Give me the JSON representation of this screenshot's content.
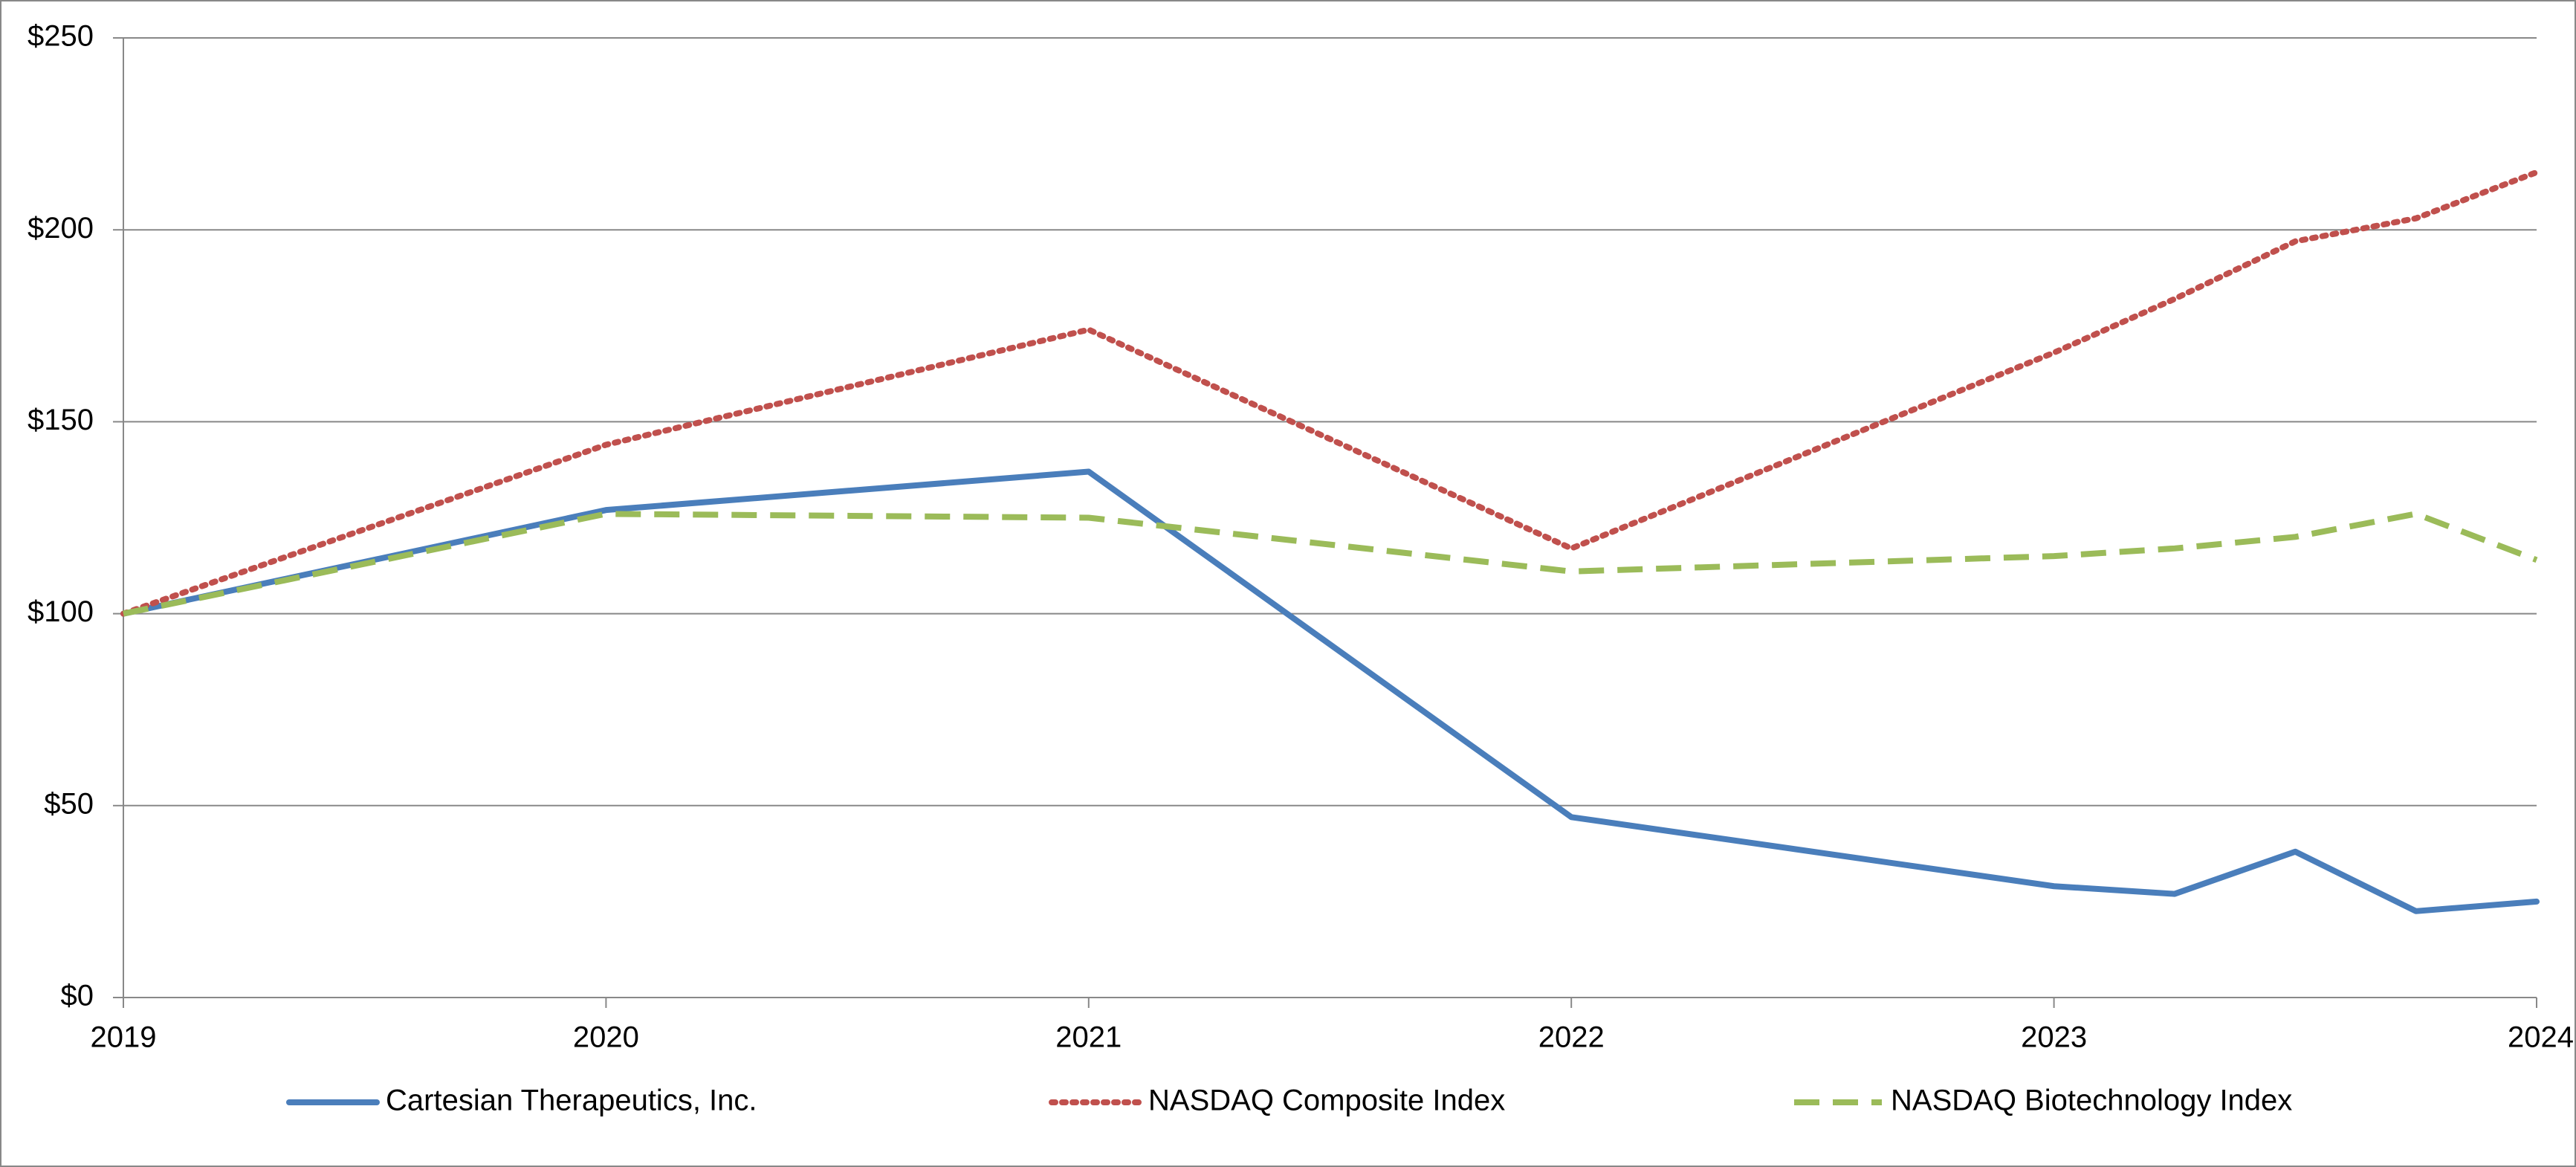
{
  "chart_data": {
    "type": "line",
    "x": [
      2019,
      2020,
      2021,
      2022,
      2023,
      2023.25,
      2023.5,
      2023.75,
      2024
    ],
    "series": [
      {
        "name": "Cartesian Therapeutics, Inc.",
        "color": "#4a7ebb",
        "style": "solid",
        "values": [
          100,
          127,
          137,
          47,
          29,
          27,
          38,
          22.5,
          25
        ]
      },
      {
        "name": "NASDAQ Composite Index",
        "color": "#c0504d",
        "style": "dotted",
        "values": [
          100,
          144,
          174,
          117,
          168,
          182,
          197,
          203,
          215
        ]
      },
      {
        "name": "NASDAQ Biotechnology Index",
        "color": "#9bbb59",
        "style": "dashed",
        "values": [
          100,
          126,
          125,
          111,
          115,
          117,
          120,
          126,
          114
        ]
      }
    ],
    "xlim": [
      2019,
      2024
    ],
    "xticks": [
      2019,
      2020,
      2021,
      2022,
      2023,
      2024
    ],
    "ylim": [
      0,
      250
    ],
    "yticks": [
      {
        "value": 0,
        "label": "$0"
      },
      {
        "value": 50,
        "label": "$50"
      },
      {
        "value": 100,
        "label": "$100"
      },
      {
        "value": 150,
        "label": "$150"
      },
      {
        "value": 200,
        "label": "$200"
      },
      {
        "value": 250,
        "label": "$250"
      }
    ],
    "grid": true,
    "legend": "bottom"
  }
}
